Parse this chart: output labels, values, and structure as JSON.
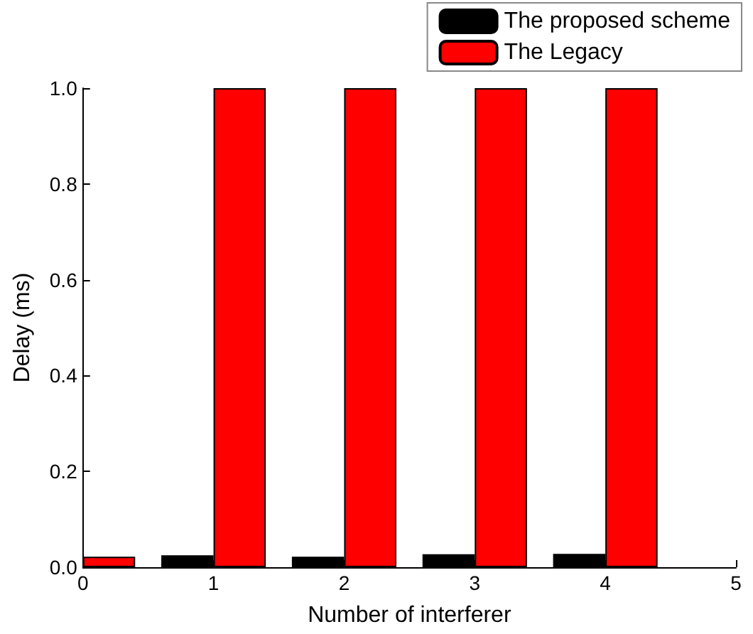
{
  "chart_data": {
    "type": "bar",
    "xlabel": "Number of interferer",
    "ylabel": "Delay (ms)",
    "x": [
      0,
      1,
      2,
      3,
      4
    ],
    "series": [
      {
        "name": "The proposed scheme",
        "color": "#000000",
        "values": [
          null,
          0.025,
          0.022,
          0.027,
          0.028
        ]
      },
      {
        "name": "The Legacy",
        "color": "#ff0000",
        "values": [
          0.022,
          1.0,
          1.0,
          1.0,
          1.0
        ]
      }
    ],
    "xlim": [
      0,
      5
    ],
    "xticks": [
      0,
      1,
      2,
      3,
      4,
      5
    ],
    "ylim": [
      0,
      1.0
    ],
    "yticks": [
      {
        "value": 0,
        "label": "0.0"
      },
      {
        "value": 0.2,
        "label": "0.2"
      },
      {
        "value": 0.4,
        "label": "0.4"
      },
      {
        "value": 0.6,
        "label": "0.6"
      },
      {
        "value": 0.8,
        "label": "0.8"
      },
      {
        "value": 1.0,
        "label": "1.0"
      }
    ],
    "grid": false,
    "legend": "top right"
  }
}
